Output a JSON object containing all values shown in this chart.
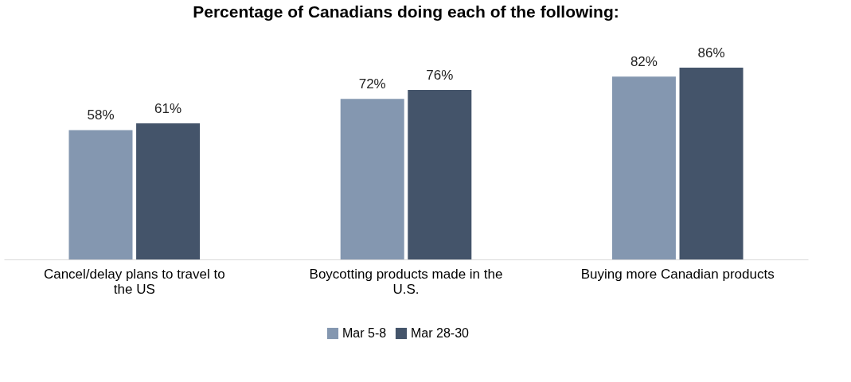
{
  "chart_data": {
    "type": "bar",
    "title": "Percentage of Canadians doing each of the following:",
    "categories": [
      "Cancel/delay plans to travel to the US",
      "Boycotting products made in the U.S.",
      "Buying more Canadian products"
    ],
    "series": [
      {
        "name": "Mar 5-8",
        "color": "#8497b0",
        "values": [
          58,
          72,
          82
        ],
        "value_labels": [
          "58%",
          "72%",
          "82%"
        ]
      },
      {
        "name": "Mar 28-30",
        "color": "#44546a",
        "values": [
          61,
          76,
          86
        ],
        "value_labels": [
          "61%",
          "76%",
          "86%"
        ]
      }
    ],
    "data_labels": true,
    "legend": "bottom",
    "grid": false
  }
}
